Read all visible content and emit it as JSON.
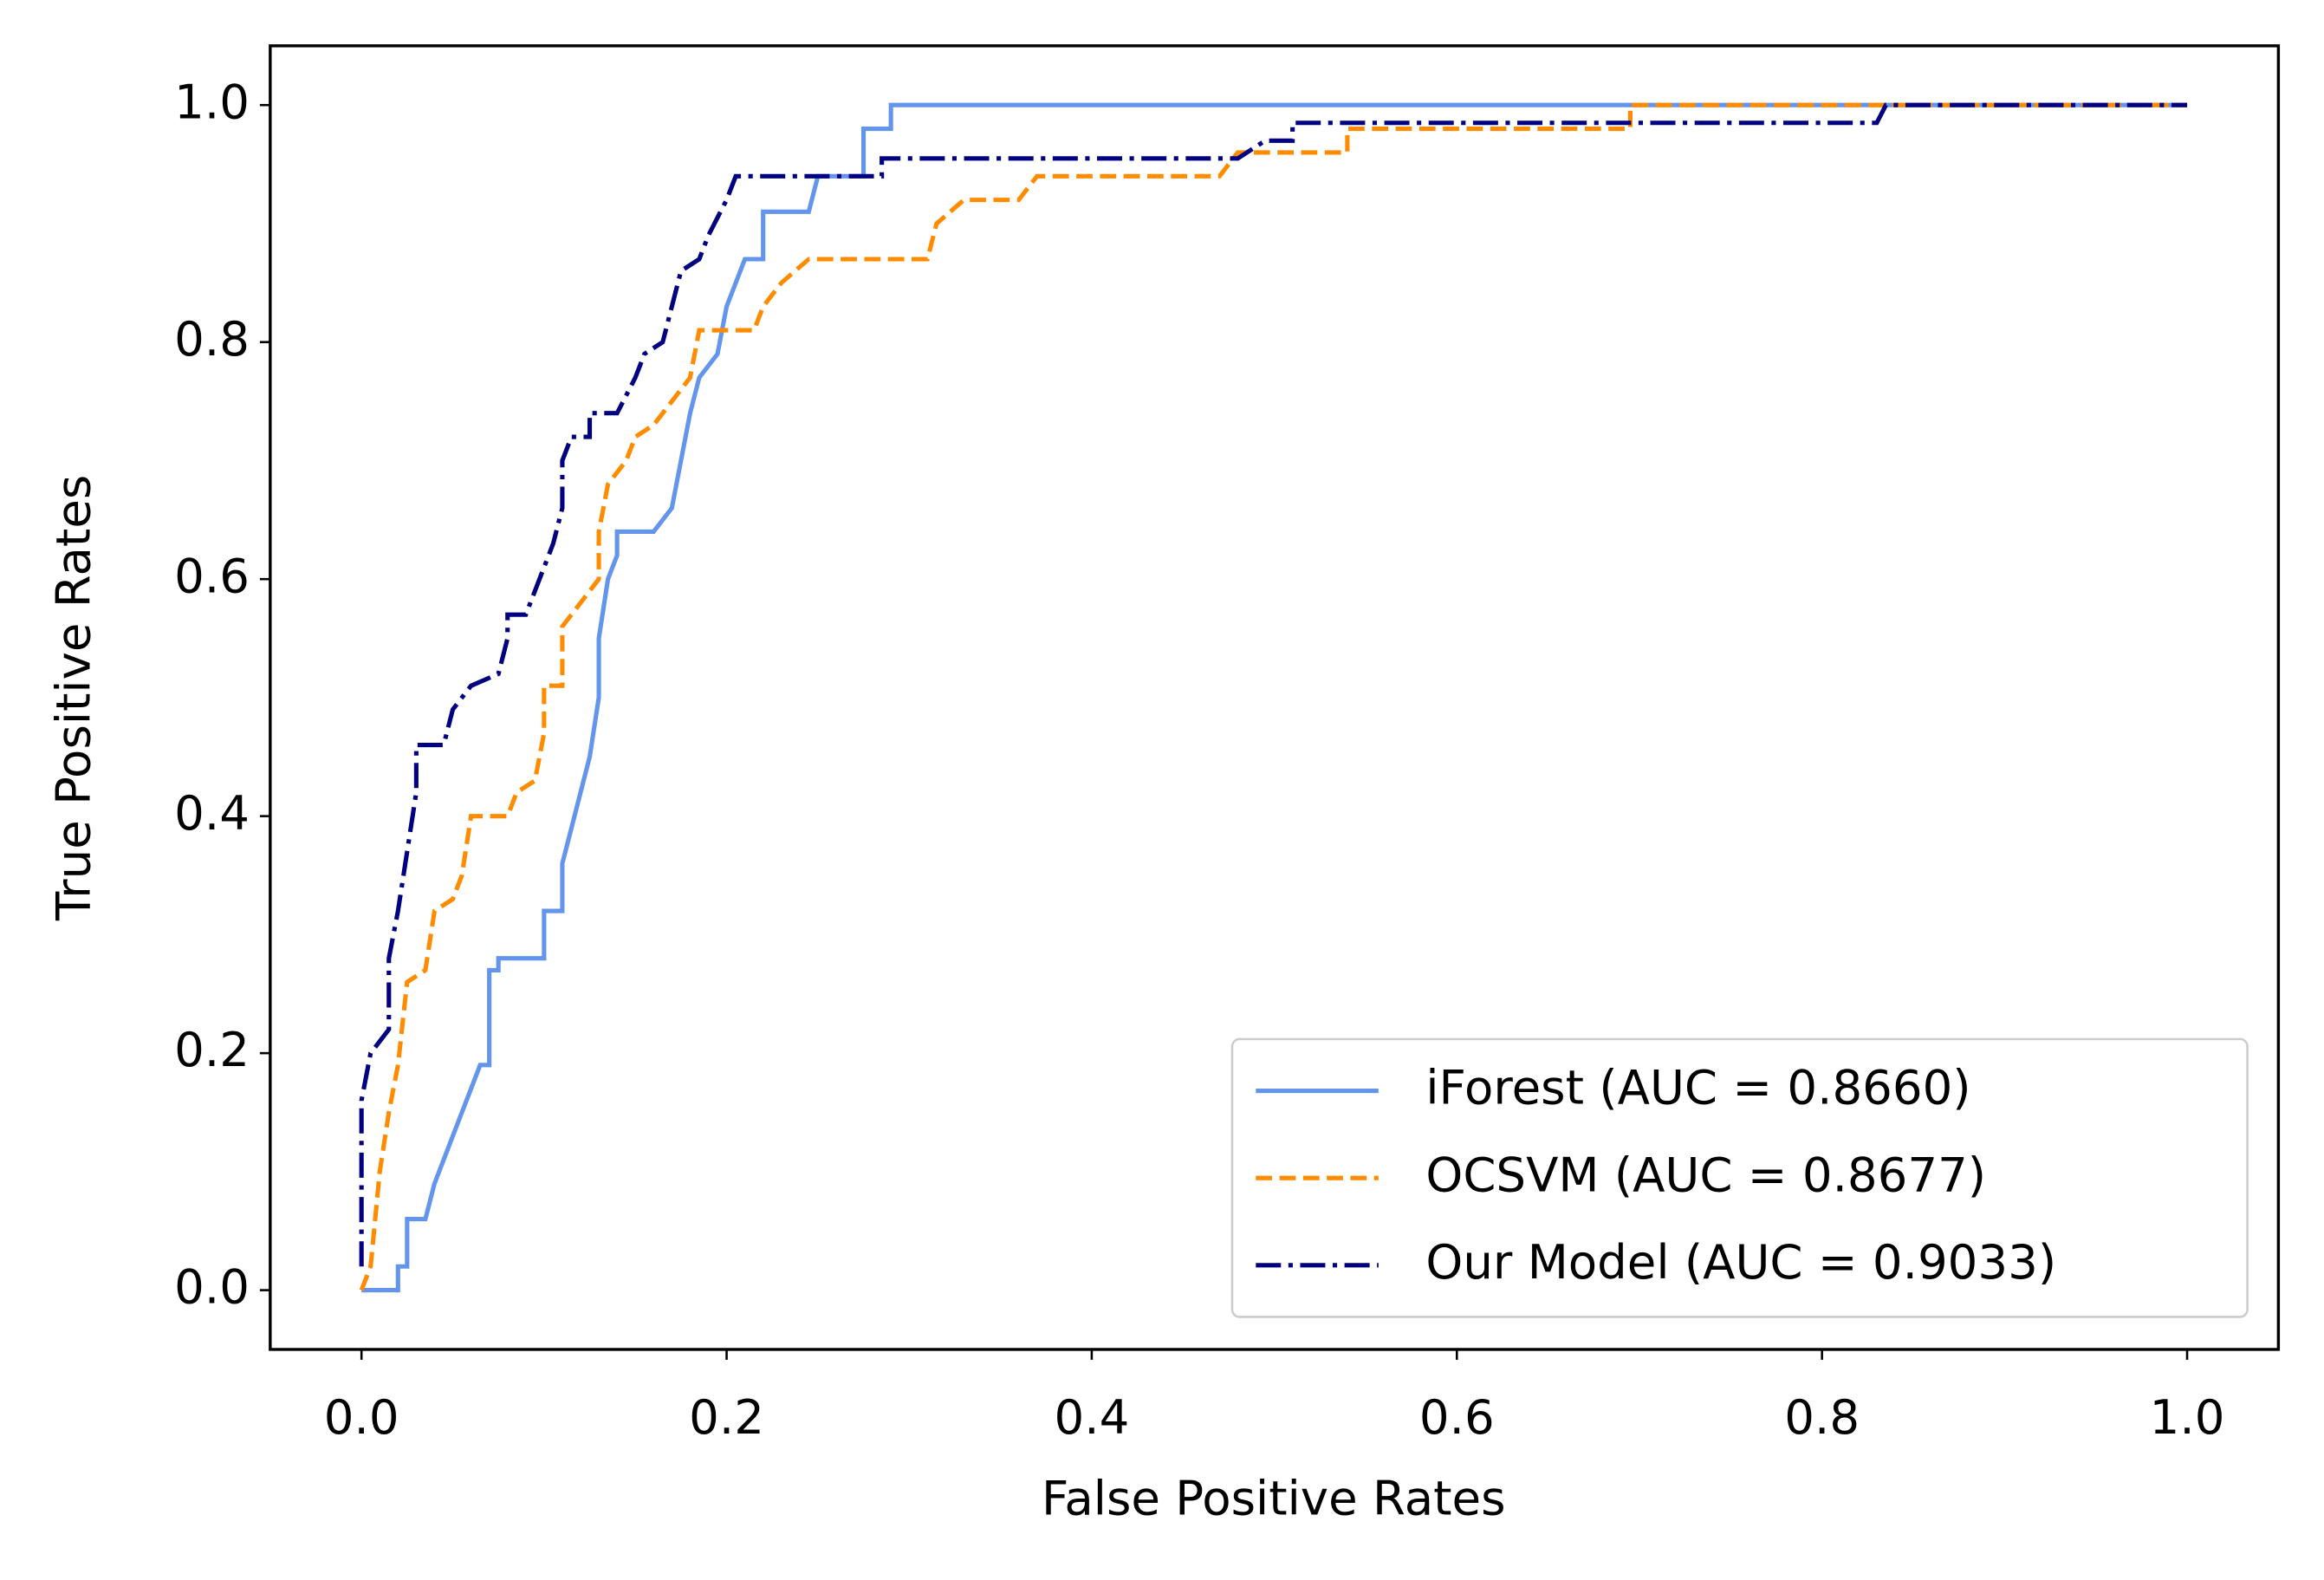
{
  "chart_data": {
    "type": "line",
    "xlabel": "False Positive Rates",
    "ylabel": "True Positive Rates",
    "xlim": [
      -0.05,
      1.05
    ],
    "ylim": [
      -0.05,
      1.05
    ],
    "xticks": [
      {
        "value": 0,
        "label": "0.0"
      },
      {
        "value": 0.2,
        "label": "0.2"
      },
      {
        "value": 0.4,
        "label": "0.4"
      },
      {
        "value": 0.6,
        "label": "0.6"
      },
      {
        "value": 0.8,
        "label": "0.8"
      },
      {
        "value": 1,
        "label": "1.0"
      }
    ],
    "yticks": [
      {
        "value": 0,
        "label": "0.0"
      },
      {
        "value": 0.2,
        "label": "0.2"
      },
      {
        "value": 0.4,
        "label": "0.4"
      },
      {
        "value": 0.6,
        "label": "0.6"
      },
      {
        "value": 0.8,
        "label": "0.8"
      },
      {
        "value": 1,
        "label": "1.0"
      }
    ],
    "grid": false,
    "legend": "lower right",
    "series": [
      {
        "name": "iForest (AUC = 0.8660)",
        "color": "#6495ed",
        "style": "solid",
        "x": [
          0,
          0.02,
          0.02,
          0.025,
          0.025,
          0.035,
          0.04,
          0.045,
          0.05,
          0.055,
          0.06,
          0.065,
          0.07,
          0.07,
          0.07,
          0.075,
          0.075,
          0.09,
          0.1,
          0.1,
          0.11,
          0.11,
          0.115,
          0.12,
          0.125,
          0.13,
          0.13,
          0.135,
          0.14,
          0.14,
          0.16,
          0.17,
          0.175,
          0.18,
          0.185,
          0.195,
          0.2,
          0.21,
          0.22,
          0.22,
          0.245,
          0.25,
          0.275,
          0.275,
          0.29,
          0.29,
          1.0
        ],
        "values": [
          0,
          0,
          0.02,
          0.02,
          0.06,
          0.06,
          0.09,
          0.11,
          0.13,
          0.15,
          0.17,
          0.19,
          0.19,
          0.23,
          0.27,
          0.27,
          0.28,
          0.28,
          0.28,
          0.32,
          0.32,
          0.36,
          0.39,
          0.42,
          0.45,
          0.5,
          0.55,
          0.6,
          0.62,
          0.64,
          0.64,
          0.66,
          0.7,
          0.74,
          0.77,
          0.79,
          0.83,
          0.87,
          0.87,
          0.91,
          0.91,
          0.94,
          0.94,
          0.98,
          0.98,
          1.0,
          1.0
        ]
      },
      {
        "name": "OCSVM (AUC = 0.8677)",
        "color": "#ff8c00",
        "style": "dashed",
        "x": [
          0,
          0.005,
          0.01,
          0.015,
          0.02,
          0.025,
          0.035,
          0.04,
          0.05,
          0.055,
          0.06,
          0.08,
          0.085,
          0.095,
          0.1,
          0.1,
          0.11,
          0.11,
          0.12,
          0.13,
          0.13,
          0.135,
          0.145,
          0.15,
          0.16,
          0.17,
          0.18,
          0.185,
          0.215,
          0.22,
          0.23,
          0.245,
          0.31,
          0.315,
          0.33,
          0.36,
          0.37,
          0.47,
          0.48,
          0.54,
          0.54,
          0.695,
          0.695,
          1.0
        ],
        "values": [
          0,
          0.02,
          0.1,
          0.15,
          0.19,
          0.26,
          0.27,
          0.32,
          0.33,
          0.35,
          0.4,
          0.4,
          0.42,
          0.43,
          0.47,
          0.51,
          0.51,
          0.56,
          0.58,
          0.6,
          0.64,
          0.68,
          0.7,
          0.72,
          0.73,
          0.75,
          0.77,
          0.81,
          0.81,
          0.83,
          0.85,
          0.87,
          0.87,
          0.9,
          0.92,
          0.92,
          0.94,
          0.94,
          0.96,
          0.96,
          0.98,
          0.98,
          1.0,
          1.0
        ]
      },
      {
        "name": "Our Model (AUC = 0.9033)",
        "color": "#000080",
        "style": "dashdot",
        "x": [
          0,
          0,
          0.005,
          0.01,
          0.015,
          0.015,
          0.02,
          0.025,
          0.03,
          0.03,
          0.045,
          0.05,
          0.06,
          0.075,
          0.08,
          0.08,
          0.09,
          0.095,
          0.1,
          0.105,
          0.11,
          0.11,
          0.115,
          0.125,
          0.125,
          0.14,
          0.15,
          0.155,
          0.165,
          0.17,
          0.175,
          0.185,
          0.19,
          0.2,
          0.205,
          0.24,
          0.285,
          0.285,
          0.48,
          0.495,
          0.51,
          0.51,
          0.83,
          0.835,
          1.0
        ],
        "values": [
          0.02,
          0.16,
          0.2,
          0.21,
          0.22,
          0.28,
          0.32,
          0.37,
          0.42,
          0.46,
          0.46,
          0.49,
          0.51,
          0.52,
          0.55,
          0.57,
          0.57,
          0.59,
          0.61,
          0.63,
          0.66,
          0.7,
          0.72,
          0.72,
          0.74,
          0.74,
          0.77,
          0.79,
          0.8,
          0.83,
          0.86,
          0.87,
          0.89,
          0.92,
          0.94,
          0.94,
          0.94,
          0.955,
          0.955,
          0.97,
          0.97,
          0.985,
          0.985,
          1.0,
          1.0
        ]
      }
    ]
  }
}
